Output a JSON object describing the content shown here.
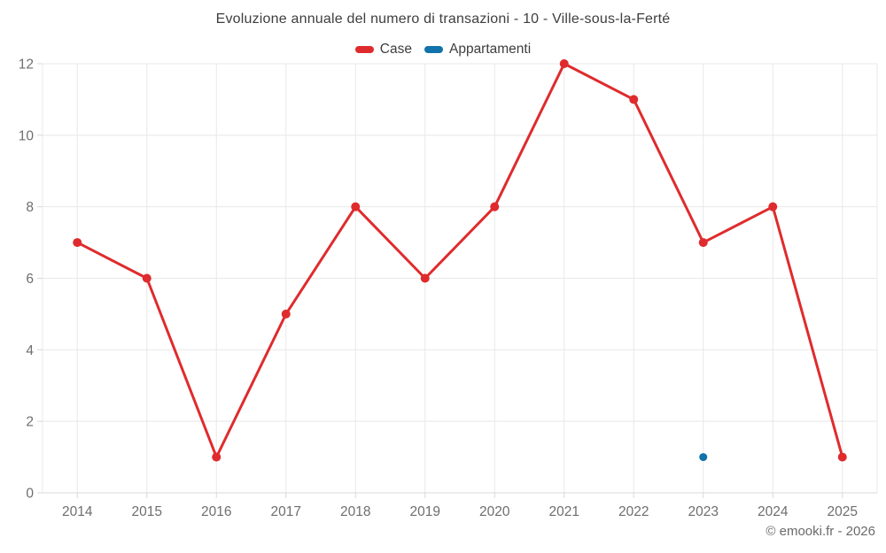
{
  "title": "Evoluzione annuale del numero di transazioni - 10 - Ville-sous-la-Ferté",
  "legend": [
    {
      "label": "Case",
      "color": "#df2b2d"
    },
    {
      "label": "Appartamenti",
      "color": "#1272aa"
    }
  ],
  "footer": "© emooki.fr - 2026",
  "colors": {
    "title_text": "#3e3e3e",
    "axis_label_text": "#6e6e6e",
    "gridline": "#e8e8e8",
    "axis_line": "#d8d8d8",
    "background": "#ffffff"
  },
  "chart_data": {
    "type": "line",
    "title": "Evoluzione annuale del numero di transazioni - 10 - Ville-sous-la-Ferté",
    "categories": [
      "2014",
      "2015",
      "2016",
      "2017",
      "2018",
      "2019",
      "2020",
      "2021",
      "2022",
      "2023",
      "2024",
      "2025"
    ],
    "series": [
      {
        "name": "Case",
        "color": "#df2b2d",
        "line_width": 3,
        "marker_radius": 5,
        "values": [
          7,
          6,
          1,
          5,
          8,
          6,
          8,
          12,
          11,
          7,
          8,
          1
        ]
      },
      {
        "name": "Appartamenti",
        "color": "#1272aa",
        "line_width": 3,
        "marker_radius": 4.5,
        "values": [
          null,
          null,
          null,
          null,
          null,
          null,
          null,
          null,
          null,
          1,
          null,
          null
        ]
      }
    ],
    "xlabel": "",
    "ylabel": "",
    "ylim": [
      0,
      12
    ],
    "yticks": [
      0,
      2,
      4,
      6,
      8,
      10,
      12
    ],
    "grid": true,
    "legend_position": "top"
  }
}
